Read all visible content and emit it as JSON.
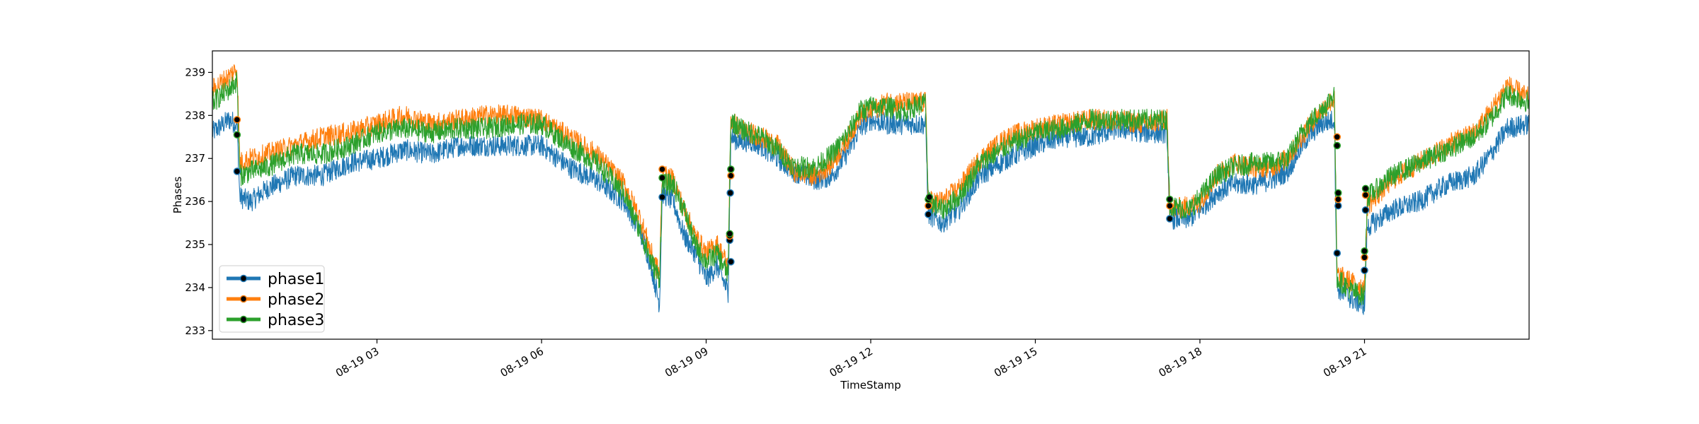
{
  "chart_data": {
    "type": "line",
    "title": "",
    "xlabel": "TimeStamp",
    "ylabel": "Phases",
    "xlim": [
      "2023-08-19 00:00",
      "2023-08-19 24:00"
    ],
    "ylim": [
      232.8,
      239.5
    ],
    "x_ticks": [
      {
        "t": 3,
        "label": "08-19 03"
      },
      {
        "t": 6,
        "label": "08-19 06"
      },
      {
        "t": 9,
        "label": "08-19 09"
      },
      {
        "t": 12,
        "label": "08-19 12"
      },
      {
        "t": 15,
        "label": "08-19 15"
      },
      {
        "t": 18,
        "label": "08-19 18"
      },
      {
        "t": 21,
        "label": "08-19 21"
      }
    ],
    "y_ticks": [
      233,
      234,
      235,
      236,
      237,
      238,
      239
    ],
    "grid": false,
    "legend_position": "lower-left",
    "series": [
      {
        "name": "phase1",
        "color": "#1f77b4",
        "x": [
          0.0,
          0.3,
          0.45,
          0.5,
          0.7,
          1.0,
          1.5,
          2.0,
          2.5,
          3.0,
          3.5,
          4.0,
          4.5,
          5.0,
          5.5,
          6.0,
          6.5,
          7.0,
          7.5,
          7.8,
          8.0,
          8.15,
          8.2,
          8.4,
          8.6,
          8.8,
          9.0,
          9.2,
          9.4,
          9.45,
          9.6,
          9.8,
          10.0,
          10.3,
          10.6,
          11.0,
          11.3,
          11.6,
          11.8,
          12.0,
          12.3,
          12.6,
          13.0,
          13.05,
          13.3,
          13.6,
          14.0,
          14.5,
          15.0,
          15.5,
          16.0,
          16.5,
          17.0,
          17.4,
          17.45,
          17.8,
          18.0,
          18.3,
          18.6,
          19.0,
          19.3,
          19.6,
          19.9,
          20.2,
          20.45,
          20.5,
          20.8,
          21.0,
          21.05,
          21.5,
          22.0,
          22.5,
          23.0,
          23.3,
          23.6,
          24.0
        ],
        "y": [
          237.6,
          237.9,
          237.8,
          236.1,
          236.0,
          236.3,
          236.6,
          236.6,
          236.9,
          237.0,
          237.2,
          237.1,
          237.3,
          237.3,
          237.3,
          237.3,
          236.8,
          236.5,
          236.0,
          235.3,
          234.5,
          233.6,
          236.2,
          236.0,
          235.2,
          234.8,
          234.2,
          234.5,
          233.9,
          237.5,
          237.4,
          237.4,
          237.3,
          237.0,
          236.7,
          236.5,
          236.6,
          237.2,
          237.7,
          237.9,
          237.8,
          237.8,
          237.8,
          235.7,
          235.5,
          235.8,
          236.6,
          237.0,
          237.3,
          237.5,
          237.5,
          237.7,
          237.6,
          237.6,
          235.6,
          235.6,
          235.8,
          236.2,
          236.4,
          236.4,
          236.5,
          236.7,
          237.4,
          237.8,
          237.9,
          234.0,
          233.7,
          233.6,
          235.4,
          235.8,
          236.0,
          236.4,
          236.6,
          237.1,
          237.7,
          237.8
        ]
      },
      {
        "name": "phase2",
        "color": "#ff7f0e",
        "x": [
          0.0,
          0.3,
          0.45,
          0.5,
          0.7,
          1.0,
          1.5,
          2.0,
          2.5,
          3.0,
          3.5,
          4.0,
          4.5,
          5.0,
          5.5,
          6.0,
          6.5,
          7.0,
          7.5,
          7.8,
          8.0,
          8.15,
          8.2,
          8.4,
          8.6,
          8.8,
          9.0,
          9.2,
          9.4,
          9.45,
          9.6,
          9.8,
          10.0,
          10.3,
          10.6,
          11.0,
          11.3,
          11.6,
          11.8,
          12.0,
          12.3,
          12.6,
          13.0,
          13.05,
          13.3,
          13.6,
          14.0,
          14.5,
          15.0,
          15.5,
          16.0,
          16.5,
          17.0,
          17.4,
          17.45,
          17.8,
          18.0,
          18.3,
          18.6,
          19.0,
          19.3,
          19.6,
          19.9,
          20.2,
          20.45,
          20.5,
          20.8,
          21.0,
          21.05,
          21.5,
          22.0,
          22.5,
          23.0,
          23.3,
          23.6,
          24.0
        ],
        "y": [
          238.6,
          238.9,
          239.1,
          236.9,
          237.0,
          237.1,
          237.3,
          237.5,
          237.6,
          237.8,
          238.0,
          237.8,
          237.9,
          238.0,
          238.0,
          237.9,
          237.5,
          237.1,
          236.4,
          235.6,
          234.8,
          234.3,
          236.6,
          236.5,
          235.8,
          235.2,
          234.8,
          235.0,
          234.5,
          237.9,
          237.7,
          237.6,
          237.5,
          237.3,
          236.7,
          236.6,
          236.9,
          237.5,
          238.0,
          238.1,
          238.3,
          238.3,
          238.3,
          236.0,
          236.0,
          236.3,
          237.0,
          237.5,
          237.7,
          237.8,
          237.9,
          237.9,
          237.8,
          237.9,
          235.8,
          235.9,
          236.0,
          236.6,
          236.9,
          236.8,
          236.8,
          237.0,
          237.6,
          238.1,
          238.4,
          234.3,
          234.1,
          234.0,
          235.9,
          236.5,
          236.9,
          237.3,
          237.6,
          238.1,
          238.7,
          238.4
        ]
      },
      {
        "name": "phase3",
        "color": "#2ca02c",
        "x": [
          0.0,
          0.3,
          0.45,
          0.5,
          0.7,
          1.0,
          1.5,
          2.0,
          2.5,
          3.0,
          3.5,
          4.0,
          4.5,
          5.0,
          5.5,
          6.0,
          6.5,
          7.0,
          7.5,
          7.8,
          8.0,
          8.15,
          8.2,
          8.4,
          8.6,
          8.8,
          9.0,
          9.2,
          9.4,
          9.45,
          9.6,
          9.8,
          10.0,
          10.3,
          10.6,
          11.0,
          11.3,
          11.6,
          11.8,
          12.0,
          12.3,
          12.6,
          13.0,
          13.05,
          13.3,
          13.6,
          14.0,
          14.5,
          15.0,
          15.5,
          16.0,
          16.5,
          17.0,
          17.4,
          17.45,
          17.8,
          18.0,
          18.3,
          18.6,
          19.0,
          19.3,
          19.6,
          19.9,
          20.2,
          20.45,
          20.5,
          20.8,
          21.0,
          21.05,
          21.5,
          22.0,
          22.5,
          23.0,
          23.3,
          23.6,
          24.0
        ],
        "y": [
          238.3,
          238.6,
          238.8,
          236.6,
          236.7,
          236.8,
          237.1,
          237.1,
          237.3,
          237.6,
          237.7,
          237.6,
          237.7,
          237.7,
          237.8,
          237.8,
          237.3,
          236.9,
          236.2,
          235.3,
          234.6,
          234.2,
          236.4,
          236.4,
          235.8,
          235.0,
          234.6,
          234.8,
          234.3,
          237.9,
          237.7,
          237.6,
          237.5,
          237.2,
          236.8,
          236.8,
          237.1,
          237.6,
          238.1,
          238.2,
          238.2,
          238.1,
          238.3,
          236.0,
          235.8,
          236.1,
          236.9,
          237.3,
          237.6,
          237.7,
          237.9,
          237.9,
          237.9,
          237.9,
          235.9,
          235.8,
          236.1,
          236.6,
          236.8,
          236.9,
          236.9,
          237.0,
          237.7,
          238.1,
          238.5,
          234.2,
          233.9,
          233.8,
          236.1,
          236.6,
          236.9,
          237.2,
          237.5,
          237.9,
          238.5,
          238.3
        ]
      }
    ],
    "markers": [
      {
        "x": 0.45,
        "values": [
          236.7,
          237.9,
          237.55
        ]
      },
      {
        "x": 8.2,
        "values": [
          236.1,
          236.75,
          236.55
        ]
      },
      {
        "x": 9.45,
        "values": [
          234.6,
          236.6,
          236.75
        ]
      },
      {
        "x": 9.43,
        "values": [
          235.1,
          235.2,
          235.25
        ]
      },
      {
        "x": 9.44,
        "values": [
          236.2,
          null,
          null
        ]
      },
      {
        "x": 13.05,
        "values": [
          235.7,
          235.9,
          236.05
        ]
      },
      {
        "x": 13.07,
        "values": [
          null,
          null,
          236.1
        ]
      },
      {
        "x": 17.45,
        "values": [
          235.6,
          235.9,
          236.05
        ]
      },
      {
        "x": 20.5,
        "values": [
          234.8,
          237.5,
          237.3
        ]
      },
      {
        "x": 20.52,
        "values": [
          235.9,
          236.05,
          236.2
        ]
      },
      {
        "x": 21.0,
        "values": [
          234.4,
          234.7,
          234.85
        ]
      },
      {
        "x": 21.02,
        "values": [
          235.8,
          236.15,
          236.3
        ]
      }
    ]
  }
}
